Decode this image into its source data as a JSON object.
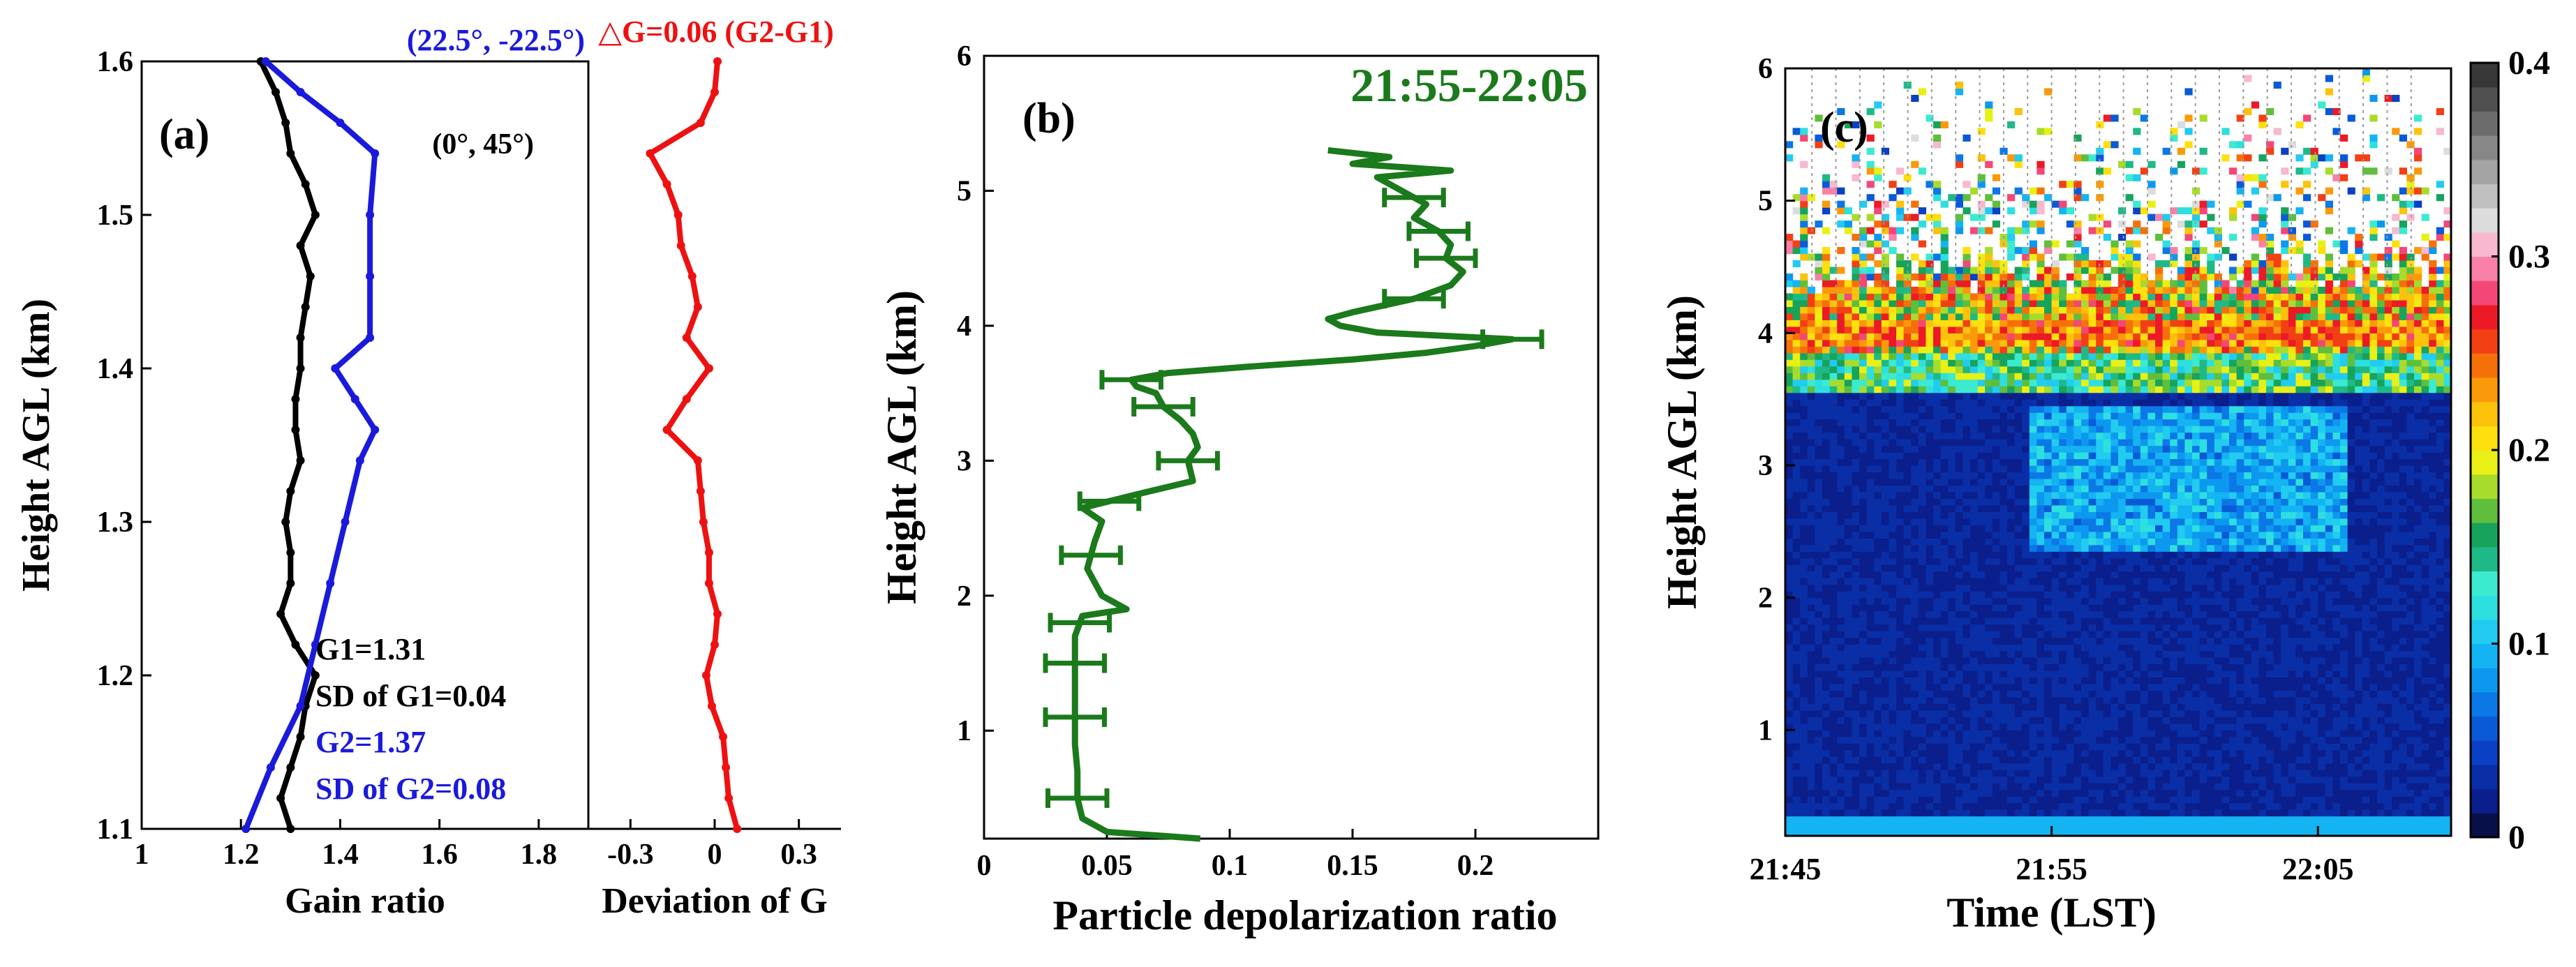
{
  "chart_data": [
    {
      "panel": "a-left",
      "type": "line",
      "panel_label": "(a)",
      "xlabel": "Gain ratio",
      "ylabel": "Height AGL (km)",
      "xlim": [
        1.0,
        1.9
      ],
      "ylim": [
        1.1,
        1.6
      ],
      "xticks": [
        1,
        1.2,
        1.4,
        1.6,
        1.8
      ],
      "xtick_labels": [
        "1",
        "1.2",
        "1.4",
        "1.6",
        "1.8"
      ],
      "yticks": [
        1.1,
        1.2,
        1.3,
        1.4,
        1.5,
        1.6
      ],
      "ytick_labels": [
        "1.1",
        "1.2",
        "1.3",
        "1.4",
        "1.5",
        "1.6"
      ],
      "series": [
        {
          "name": "(0°, 45°)",
          "color": "#000000",
          "heights": [
            1.1,
            1.12,
            1.14,
            1.16,
            1.18,
            1.2,
            1.22,
            1.24,
            1.26,
            1.28,
            1.3,
            1.32,
            1.34,
            1.36,
            1.38,
            1.4,
            1.42,
            1.44,
            1.46,
            1.48,
            1.5,
            1.52,
            1.54,
            1.56,
            1.58,
            1.6
          ],
          "values": [
            1.3,
            1.28,
            1.3,
            1.32,
            1.33,
            1.35,
            1.31,
            1.28,
            1.3,
            1.3,
            1.29,
            1.3,
            1.32,
            1.31,
            1.31,
            1.32,
            1.32,
            1.33,
            1.34,
            1.32,
            1.35,
            1.33,
            1.3,
            1.29,
            1.27,
            1.24
          ]
        },
        {
          "name": "(22.5°, -22.5°)",
          "color": "#1a1adb",
          "heights": [
            1.1,
            1.14,
            1.18,
            1.22,
            1.26,
            1.3,
            1.34,
            1.36,
            1.38,
            1.4,
            1.42,
            1.46,
            1.5,
            1.54,
            1.56,
            1.58,
            1.6
          ],
          "values": [
            1.21,
            1.26,
            1.32,
            1.35,
            1.38,
            1.41,
            1.44,
            1.47,
            1.43,
            1.39,
            1.46,
            1.46,
            1.46,
            1.47,
            1.4,
            1.32,
            1.25
          ]
        }
      ],
      "annotations": [
        "G1=1.31",
        "SD of G1=0.04",
        "G2=1.37",
        "SD of G2=0.08"
      ]
    },
    {
      "panel": "a-right",
      "type": "line",
      "title": "△G=0.06 (G2-G1)",
      "xlabel": "Deviation of G",
      "xlim": [
        -0.45,
        0.45
      ],
      "ylim": [
        1.1,
        1.6
      ],
      "xticks": [
        -0.3,
        0,
        0.3
      ],
      "xtick_labels": [
        "-0.3",
        "0",
        "0.3"
      ],
      "series": [
        {
          "name": "G2-G1",
          "color": "#ee1111",
          "heights": [
            1.1,
            1.12,
            1.14,
            1.16,
            1.18,
            1.2,
            1.22,
            1.24,
            1.26,
            1.28,
            1.3,
            1.32,
            1.34,
            1.36,
            1.38,
            1.4,
            1.42,
            1.44,
            1.46,
            1.48,
            1.5,
            1.52,
            1.54,
            1.56,
            1.58,
            1.6
          ],
          "values": [
            0.08,
            0.05,
            0.04,
            0.03,
            -0.01,
            -0.03,
            0.0,
            0.01,
            -0.02,
            -0.02,
            -0.04,
            -0.05,
            -0.06,
            -0.17,
            -0.1,
            -0.02,
            -0.1,
            -0.06,
            -0.08,
            -0.12,
            -0.13,
            -0.17,
            -0.23,
            -0.05,
            0.0,
            0.01
          ]
        }
      ]
    },
    {
      "panel": "b",
      "type": "line",
      "panel_label": "(b)",
      "title": "21:55-22:05",
      "xlabel": "Particle depolarization ratio",
      "ylabel": "Height AGL (km)",
      "xlim": [
        0,
        0.25
      ],
      "ylim": [
        0.2,
        6
      ],
      "xticks": [
        0,
        0.05,
        0.1,
        0.15,
        0.2
      ],
      "xtick_labels": [
        "0",
        "0.05",
        "0.1",
        "0.15",
        "0.2"
      ],
      "yticks": [
        1,
        2,
        3,
        4,
        5,
        6
      ],
      "ytick_labels": [
        "1",
        "2",
        "3",
        "4",
        "5",
        "6"
      ],
      "color": "#1b7a1b",
      "profile": {
        "heights": [
          0.2,
          0.25,
          0.35,
          0.5,
          0.7,
          0.9,
          1.1,
          1.3,
          1.5,
          1.7,
          1.85,
          1.9,
          2.0,
          2.2,
          2.4,
          2.55,
          2.65,
          2.75,
          2.85,
          3.0,
          3.1,
          3.2,
          3.3,
          3.4,
          3.5,
          3.55,
          3.6,
          3.65,
          3.7,
          3.75,
          3.8,
          3.85,
          3.9,
          3.95,
          4.0,
          4.05,
          4.1,
          4.2,
          4.3,
          4.4,
          4.5,
          4.6,
          4.7,
          4.8,
          4.9,
          5.0,
          5.1,
          5.15,
          5.2,
          5.25,
          5.3
        ],
        "values": [
          0.088,
          0.05,
          0.04,
          0.038,
          0.038,
          0.037,
          0.037,
          0.037,
          0.037,
          0.037,
          0.04,
          0.058,
          0.048,
          0.042,
          0.045,
          0.048,
          0.04,
          0.062,
          0.085,
          0.083,
          0.087,
          0.085,
          0.08,
          0.073,
          0.07,
          0.062,
          0.06,
          0.075,
          0.11,
          0.15,
          0.18,
          0.2,
          0.215,
          0.16,
          0.145,
          0.14,
          0.15,
          0.175,
          0.19,
          0.195,
          0.188,
          0.19,
          0.185,
          0.175,
          0.18,
          0.17,
          0.16,
          0.19,
          0.15,
          0.165,
          0.14
        ],
        "error_bar_heights": [
          0.5,
          1.1,
          1.5,
          1.8,
          2.3,
          2.7,
          3.0,
          3.4,
          3.6,
          3.9,
          4.2,
          4.5,
          4.7,
          4.95
        ],
        "error_half_width": 0.012
      }
    },
    {
      "panel": "c",
      "type": "heatmap",
      "panel_label": "(c)",
      "xlabel": "Time (LST)",
      "ylabel": "Height AGL (km)",
      "xlim_minutes_after_2145": [
        0,
        25
      ],
      "ylim": [
        0.2,
        6
      ],
      "xticks_minutes": [
        0,
        10,
        20
      ],
      "xtick_labels": [
        "21:45",
        "21:55",
        "22:05"
      ],
      "yticks": [
        1,
        2,
        3,
        4,
        5,
        6
      ],
      "ytick_labels": [
        "1",
        "2",
        "3",
        "4",
        "5",
        "6"
      ],
      "colorbar": {
        "min": 0,
        "max": 0.4,
        "ticks": [
          0,
          0.1,
          0.2,
          0.3,
          0.4
        ],
        "tick_labels": [
          "0",
          "0.1",
          "0.2",
          "0.3",
          "0.4"
        ],
        "colors": [
          "#08104a",
          "#0a1f8c",
          "#0a2ea6",
          "#0a40c4",
          "#0a5ad8",
          "#0b78e6",
          "#0d98ef",
          "#14b3f2",
          "#22cbf0",
          "#2edfe0",
          "#3cead0",
          "#1fb988",
          "#17a35c",
          "#5fbf3c",
          "#a7dc2c",
          "#e8f016",
          "#fde00e",
          "#fcc20c",
          "#fa9a0a",
          "#f6700a",
          "#f24014",
          "#ec1a26",
          "#f34778",
          "#f980a8",
          "#f7b8d0",
          "#dcdcdc",
          "#c0c0c0",
          "#a4a4a4",
          "#888888",
          "#6c6c6c",
          "#505050",
          "#383838"
        ]
      },
      "description_layers": [
        {
          "from_km": 0.2,
          "to_km": 3.5,
          "value": 0.02
        },
        {
          "from_km": 3.5,
          "to_km": 3.8,
          "value": 0.12
        },
        {
          "from_km": 3.8,
          "to_km": 4.3,
          "value": 0.22
        },
        {
          "from_km": 4.3,
          "to_km": 5.9,
          "value": 0.06
        }
      ]
    }
  ]
}
